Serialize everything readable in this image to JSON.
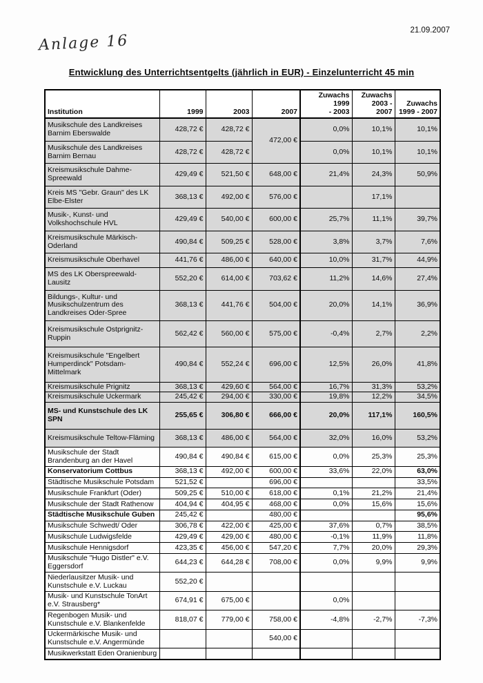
{
  "page": {
    "date": "21.09.2007",
    "handwritten_note": "Anlage 16",
    "title": "Entwicklung des Unterrichtsentgelts (jährlich in EUR) - Einzelunterricht 45 min"
  },
  "colors": {
    "row_shade": "#d8d8d8",
    "border": "#000000"
  },
  "table": {
    "header": {
      "institution": "Institution",
      "y1999": "1999",
      "y2003": "2003",
      "y2007": "2007",
      "z1_line1": "Zuwachs 1999",
      "z1_line2": "- 2003",
      "z2_line1": "Zuwachs",
      "z2_line2": "2003 - 2007",
      "z3_line1": "Zuwachs",
      "z3_line2": "1999 - 2007"
    },
    "rows": [
      {
        "institution": "Musikschule des Landkreises Barnim Eberswalde",
        "v1999": "428,72 €",
        "v2003": "428,72 €",
        "v2007": "472,00 €",
        "v2007_rowspan": 2,
        "z1": "0,0%",
        "z2": "10,1%",
        "z3": "10,1%",
        "shaded": true
      },
      {
        "institution": "Musikschule des Landkreises Barnim Bernau",
        "v1999": "428,72 €",
        "v2003": "428,72 €",
        "v2007": null,
        "z1": "0,0%",
        "z2": "10,1%",
        "z3": "10,1%",
        "shaded": true
      },
      {
        "institution": "Kreismusikschule Dahme-Spreewald",
        "v1999": "429,49 €",
        "v2003": "521,50 €",
        "v2007": "648,00 €",
        "z1": "21,4%",
        "z2": "24,3%",
        "z3": "50,9%",
        "shaded": true
      },
      {
        "institution": "Kreis MS \"Gebr. Graun\" des LK Elbe-Elster",
        "v1999": "368,13 €",
        "v2003": "492,00 €",
        "v2007": "576,00 €",
        "z1": "",
        "z2": "17,1%",
        "z3": "",
        "shaded": true
      },
      {
        "institution": "Musik-, Kunst- und Volkshochschule HVL",
        "v1999": "429,49 €",
        "v2003": "540,00 €",
        "v2007": "600,00 €",
        "z1": "25,7%",
        "z2": "11,1%",
        "z3": "39,7%",
        "shaded": true
      },
      {
        "institution": "Kreismusikschule Märkisch-Oderland",
        "v1999": "490,84 €",
        "v2003": "509,25 €",
        "v2007": "528,00 €",
        "z1": "3,8%",
        "z2": "3,7%",
        "z3": "7,6%",
        "shaded": true
      },
      {
        "institution": "Kreismusikschule Oberhavel",
        "v1999": "441,76 €",
        "v2003": "486,00 €",
        "v2007": "640,00 €",
        "z1": "10,0%",
        "z2": "31,7%",
        "z3": "44,9%",
        "shaded": true
      },
      {
        "institution": "MS des LK Oberspreewald-Lausitz",
        "v1999": "552,20 €",
        "v2003": "614,00 €",
        "v2007": "703,62 €",
        "z1": "11,2%",
        "z2": "14,6%",
        "z3": "27,4%",
        "shaded": true
      },
      {
        "institution": "Bildungs-, Kultur- und Musikschulzentrum des Landkreises Oder-Spree",
        "v1999": "368,13 €",
        "v2003": "441,76 €",
        "v2007": "504,00 €",
        "z1": "20,0%",
        "z2": "14,1%",
        "z3": "36,9%",
        "shaded": true
      },
      {
        "institution": "Kreismusikschule Ostprignitz-Ruppin",
        "v1999": "562,42 €",
        "v2003": "560,00 €",
        "v2007": "575,00 €",
        "z1": "-0,4%",
        "z2": "2,7%",
        "z3": "2,2%",
        "shaded": true,
        "tall": true
      },
      {
        "institution": "Kreismusikschule \"Engelbert Humperdinck\" Potsdam-Mittelmark",
        "v1999": "490,84 €",
        "v2003": "552,24 €",
        "v2007": "696,00 €",
        "z1": "12,5%",
        "z2": "26,0%",
        "z3": "41,8%",
        "shaded": true,
        "tall": true
      },
      {
        "institution": "Kreismusikschule Prignitz",
        "v1999": "368,13 €",
        "v2003": "429,60 €",
        "v2007": "564,00 €",
        "z1": "16,7%",
        "z2": "31,3%",
        "z3": "53,2%",
        "shaded": true,
        "compact": true
      },
      {
        "institution": "Kreismusikschule Uckermark",
        "v1999": "245,42 €",
        "v2003": "294,00 €",
        "v2007": "330,00 €",
        "z1": "19,8%",
        "z2": "12,2%",
        "z3": "34,5%",
        "shaded": true,
        "compact": true
      },
      {
        "institution": "MS- und Kunstschule des LK SPN",
        "v1999": "255,65 €",
        "v2003": "306,80 €",
        "v2007": "666,00 €",
        "z1": "20,0%",
        "z2": "117,1%",
        "z3": "160,5%",
        "shaded": true,
        "bold": true,
        "tall": true
      },
      {
        "institution": "Kreismusikschule Teltow-Fläming",
        "v1999": "368,13 €",
        "v2003": "486,00 €",
        "v2007": "564,00 €",
        "z1": "32,0%",
        "z2": "16,0%",
        "z3": "53,2%",
        "shaded": true,
        "tall": true
      },
      {
        "institution": "Musikschule der Stadt Brandenburg an der Havel",
        "v1999": "490,84 €",
        "v2003": "490,84 €",
        "v2007": "615,00 €",
        "z1": "0,0%",
        "z2": "25,3%",
        "z3": "25,3%"
      },
      {
        "institution": "Konservatorium Cottbus",
        "v1999": "368,13 €",
        "v2003": "492,00 €",
        "v2007": "600,00 €",
        "z1": "33,6%",
        "z2": "22,0%",
        "z3": "63,0%",
        "bold_name": true,
        "bold_z3": true
      },
      {
        "institution": "Städtische Musikschule Potsdam",
        "v1999": "521,52 €",
        "v2003": "",
        "v2007": "696,00 €",
        "z1": "",
        "z2": "",
        "z3": "33,5%"
      },
      {
        "institution": "Musikschule Frankfurt (Oder)",
        "v1999": "509,25 €",
        "v2003": "510,00 €",
        "v2007": "618,00 €",
        "z1": "0,1%",
        "z2": "21,2%",
        "z3": "21,4%"
      },
      {
        "institution": "Musikschule der Stadt Rathenow",
        "v1999": "404,94 €",
        "v2003": "404,95 €",
        "v2007": "468,00 €",
        "z1": "0,0%",
        "z2": "15,6%",
        "z3": "15,6%"
      },
      {
        "institution": "Städtische Musikschule Guben",
        "v1999": "245,42 €",
        "v2003": "",
        "v2007": "480,00 €",
        "z1": "",
        "z2": "",
        "z3": "95,6%",
        "bold_name": true,
        "bold_z3": true
      },
      {
        "institution": "Musikschule Schwedt/ Oder",
        "v1999": "306,78 €",
        "v2003": "422,00 €",
        "v2007": "425,00 €",
        "z1": "37,6%",
        "z2": "0,7%",
        "z3": "38,5%"
      },
      {
        "institution": "Musikschule Ludwigsfelde",
        "v1999": "429,49 €",
        "v2003": "429,00 €",
        "v2007": "480,00 €",
        "z1": "-0,1%",
        "z2": "11,9%",
        "z3": "11,8%"
      },
      {
        "institution": "Musikschule Hennigsdorf",
        "v1999": "423,35 €",
        "v2003": "456,00 €",
        "v2007": "547,20 €",
        "z1": "7,7%",
        "z2": "20,0%",
        "z3": "29,3%"
      },
      {
        "institution": "Musikschule \"Hugo Distler\" e.V. Eggersdorf",
        "v1999": "644,23 €",
        "v2003": "644,28 €",
        "v2007": "708,00 €",
        "z1": "0,0%",
        "z2": "9,9%",
        "z3": "9,9%"
      },
      {
        "institution": "Niederlausitzer Musik- und Kunstschule e.V. Luckau",
        "v1999": "552,20 €",
        "v2003": "",
        "v2007": "",
        "z1": "",
        "z2": "",
        "z3": ""
      },
      {
        "institution": "Musik- und Kunstschule TonArt e.V. Strausberg*",
        "v1999": "674,91 €",
        "v2003": "675,00 €",
        "v2007": "",
        "z1": "0,0%",
        "z2": "",
        "z3": ""
      },
      {
        "institution": "Regenbogen Musik- und Kunstschule e.V. Blankenfelde",
        "v1999": "818,07 €",
        "v2003": "779,00 €",
        "v2007": "758,00 €",
        "z1": "-4,8%",
        "z2": "-2,7%",
        "z3": "-7,3%"
      },
      {
        "institution": "Uckermärkische Musik- und Kunstschule e.V. Angermünde",
        "v1999": "",
        "v2003": "",
        "v2007": "540,00 €",
        "z1": "",
        "z2": "",
        "z3": ""
      },
      {
        "institution": "Musikwerkstatt Eden Oranienburg",
        "v1999": "",
        "v2003": "",
        "v2007": "",
        "z1": "",
        "z2": "",
        "z3": ""
      }
    ]
  }
}
